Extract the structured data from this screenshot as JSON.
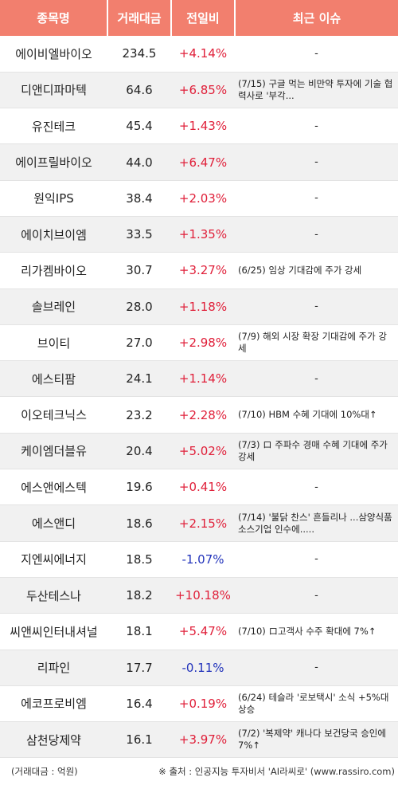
{
  "table": {
    "headers": [
      "종목명",
      "거래대금",
      "전일비",
      "최근 이슈"
    ],
    "rows": [
      {
        "name": "에이비엘바이오",
        "volume": "234.5",
        "change": "+4.14%",
        "direction": "up",
        "issue": "-"
      },
      {
        "name": "디앤디파마텍",
        "volume": "64.6",
        "change": "+6.85%",
        "direction": "up",
        "issue": "(7/15) 구글 먹는 비만약 투자에 기술 협력사로 '부각..."
      },
      {
        "name": "유진테크",
        "volume": "45.4",
        "change": "+1.43%",
        "direction": "up",
        "issue": "-"
      },
      {
        "name": "에이프릴바이오",
        "volume": "44.0",
        "change": "+6.47%",
        "direction": "up",
        "issue": "-"
      },
      {
        "name": "원익IPS",
        "volume": "38.4",
        "change": "+2.03%",
        "direction": "up",
        "issue": "-"
      },
      {
        "name": "에이치브이엠",
        "volume": "33.5",
        "change": "+1.35%",
        "direction": "up",
        "issue": "-"
      },
      {
        "name": "리가켐바이오",
        "volume": "30.7",
        "change": "+3.27%",
        "direction": "up",
        "issue": "(6/25) 임상 기대감에 주가 강세"
      },
      {
        "name": "솔브레인",
        "volume": "28.0",
        "change": "+1.18%",
        "direction": "up",
        "issue": "-"
      },
      {
        "name": "브이티",
        "volume": "27.0",
        "change": "+2.98%",
        "direction": "up",
        "issue": "(7/9) 해외 시장 확장 기대감에 주가 강세"
      },
      {
        "name": "에스티팜",
        "volume": "24.1",
        "change": "+1.14%",
        "direction": "up",
        "issue": "-"
      },
      {
        "name": "이오테크닉스",
        "volume": "23.2",
        "change": "+2.28%",
        "direction": "up",
        "issue": "(7/10) HBM 수혜 기대에 10%대↑"
      },
      {
        "name": "케이엠더블유",
        "volume": "20.4",
        "change": "+5.02%",
        "direction": "up",
        "issue": "(7/3) ロ 주파수 경매 수혜 기대에 주가 강세"
      },
      {
        "name": "에스앤에스텍",
        "volume": "19.6",
        "change": "+0.41%",
        "direction": "up",
        "issue": "-"
      },
      {
        "name": "에스앤디",
        "volume": "18.6",
        "change": "+2.15%",
        "direction": "up",
        "issue": "(7/14) '불닭 찬스' 흔들리나 ...삼양식품 소스기업 인수에....."
      },
      {
        "name": "지엔씨에너지",
        "volume": "18.5",
        "change": "-1.07%",
        "direction": "down",
        "issue": "-"
      },
      {
        "name": "두산테스나",
        "volume": "18.2",
        "change": "+10.18%",
        "direction": "up",
        "issue": "-"
      },
      {
        "name": "씨앤씨인터내셔널",
        "volume": "18.1",
        "change": "+5.47%",
        "direction": "up",
        "issue": "(7/10) ロ고객사 수주 확대에 7%↑"
      },
      {
        "name": "리파인",
        "volume": "17.7",
        "change": "-0.11%",
        "direction": "down",
        "issue": "-"
      },
      {
        "name": "에코프로비엠",
        "volume": "16.4",
        "change": "+0.19%",
        "direction": "up",
        "issue": "(6/24) 테슬라 '로보택시' 소식 +5%대 상승"
      },
      {
        "name": "삼천당제약",
        "volume": "16.1",
        "change": "+3.97%",
        "direction": "up",
        "issue": "(7/2) '복제약' 캐나다 보건당국 승인에 7%↑"
      }
    ]
  },
  "footer": {
    "unit_note": "(거래대금 : 억원)",
    "source_note": "※ 출처 : 인공지능 투자비서 'AI라씨로' (www.rassiro.com)"
  },
  "colors": {
    "header_bg": "#f27f6e",
    "up": "#e0203a",
    "down": "#2233bb",
    "stripe": "#f1f1f1"
  }
}
